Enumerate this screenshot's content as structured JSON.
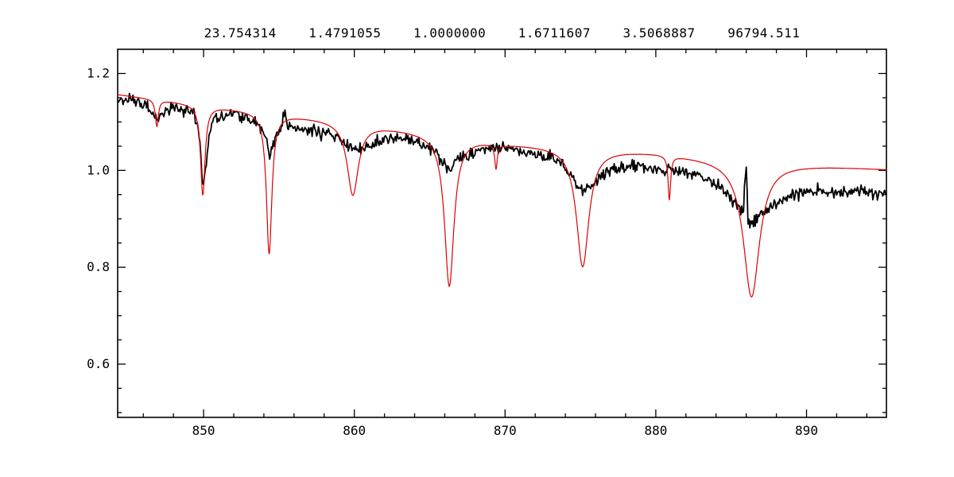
{
  "window": {
    "background": "#ffffff"
  },
  "chart_data": {
    "type": "line",
    "title": "23.754314    1.4791055    1.0000000    1.6711607    3.5068887    96794.511",
    "header_values": [
      "23.754314",
      "1.4791055",
      "1.0000000",
      "1.6711607",
      "3.5068887",
      "96794.511"
    ],
    "xlabel": "",
    "ylabel": "",
    "xlim": [
      844.3,
      895.3
    ],
    "ylim": [
      0.49,
      1.25
    ],
    "xticks": [
      850,
      860,
      870,
      880,
      890
    ],
    "xtick_labels": [
      "850",
      "860",
      "870",
      "880",
      "890"
    ],
    "xminor_step": 2,
    "yticks": [
      0.6,
      0.8,
      1.0,
      1.2
    ],
    "ytick_labels": [
      "0.6",
      "0.8",
      "1.0",
      "1.2"
    ],
    "yminor_step": 0.05,
    "grid": false,
    "legend": "none",
    "axis_color": "#000000",
    "series": [
      {
        "name": "observed-spectrum",
        "color": "#000000",
        "linewidth": 1.8,
        "sample_step": 0.06,
        "noise": 0.008,
        "seed": 987654,
        "anchors": [
          [
            844.3,
            1.15
          ],
          [
            845.0,
            1.148
          ],
          [
            845.6,
            1.142
          ],
          [
            846.2,
            1.132
          ],
          [
            846.8,
            1.115
          ],
          [
            847.0,
            1.103
          ],
          [
            847.3,
            1.121
          ],
          [
            848.0,
            1.128
          ],
          [
            848.8,
            1.124
          ],
          [
            849.4,
            1.117
          ],
          [
            849.75,
            1.06
          ],
          [
            849.95,
            0.962
          ],
          [
            850.15,
            1.01
          ],
          [
            850.5,
            1.098
          ],
          [
            851.2,
            1.115
          ],
          [
            852.0,
            1.117
          ],
          [
            852.8,
            1.108
          ],
          [
            853.6,
            1.095
          ],
          [
            854.1,
            1.068
          ],
          [
            854.4,
            1.032
          ],
          [
            854.7,
            1.068
          ],
          [
            855.1,
            1.084
          ],
          [
            855.42,
            1.127
          ],
          [
            855.6,
            1.088
          ],
          [
            856.3,
            1.086
          ],
          [
            857.2,
            1.081
          ],
          [
            858.2,
            1.076
          ],
          [
            859.0,
            1.064
          ],
          [
            859.6,
            1.05
          ],
          [
            860.0,
            1.042
          ],
          [
            860.5,
            1.048
          ],
          [
            861.2,
            1.057
          ],
          [
            862.0,
            1.064
          ],
          [
            862.8,
            1.067
          ],
          [
            863.6,
            1.064
          ],
          [
            864.4,
            1.058
          ],
          [
            865.0,
            1.048
          ],
          [
            865.6,
            1.03
          ],
          [
            866.0,
            1.01
          ],
          [
            866.3,
            1.002
          ],
          [
            866.7,
            1.016
          ],
          [
            867.3,
            1.03
          ],
          [
            868.2,
            1.038
          ],
          [
            869.0,
            1.043
          ],
          [
            869.8,
            1.046
          ],
          [
            870.6,
            1.042
          ],
          [
            871.4,
            1.036
          ],
          [
            872.2,
            1.031
          ],
          [
            873.0,
            1.027
          ],
          [
            873.8,
            1.012
          ],
          [
            874.4,
            0.99
          ],
          [
            874.9,
            0.966
          ],
          [
            875.2,
            0.957
          ],
          [
            875.6,
            0.966
          ],
          [
            876.2,
            0.985
          ],
          [
            877.0,
            1.0
          ],
          [
            877.8,
            1.008
          ],
          [
            878.6,
            1.01
          ],
          [
            879.4,
            1.006
          ],
          [
            880.2,
            1.001
          ],
          [
            881.0,
            0.998
          ],
          [
            881.8,
            0.995
          ],
          [
            882.6,
            0.989
          ],
          [
            883.4,
            0.981
          ],
          [
            884.2,
            0.967
          ],
          [
            884.9,
            0.947
          ],
          [
            885.5,
            0.927
          ],
          [
            885.82,
            0.912
          ],
          [
            885.92,
            1.003
          ],
          [
            886.02,
            0.998
          ],
          [
            886.12,
            0.9
          ],
          [
            886.45,
            0.892
          ],
          [
            887.0,
            0.906
          ],
          [
            887.7,
            0.925
          ],
          [
            888.4,
            0.94
          ],
          [
            889.2,
            0.951
          ],
          [
            890.0,
            0.958
          ],
          [
            890.8,
            0.96
          ],
          [
            891.6,
            0.953
          ],
          [
            892.4,
            0.958
          ],
          [
            893.2,
            0.952
          ],
          [
            894.0,
            0.956
          ],
          [
            894.6,
            0.949
          ],
          [
            895.3,
            0.953
          ]
        ]
      },
      {
        "name": "model-spectrum",
        "color": "#dd0000",
        "linewidth": 1.2,
        "sample_step": 0.02,
        "noise": 0,
        "seed": 1,
        "continuum": [
          [
            844.3,
            1.157
          ],
          [
            850,
            1.135
          ],
          [
            855,
            1.117
          ],
          [
            860,
            1.1
          ],
          [
            865,
            1.078
          ],
          [
            870,
            1.057
          ],
          [
            875,
            1.048
          ],
          [
            880,
            1.038
          ],
          [
            885,
            1.022
          ],
          [
            890,
            1.012
          ],
          [
            895.3,
            1.003
          ]
        ],
        "lines": [
          {
            "center": 846.9,
            "depth": 0.055,
            "width": 0.12
          },
          {
            "center": 849.95,
            "depth": 0.185,
            "width": 0.18
          },
          {
            "center": 854.35,
            "depth": 0.29,
            "width": 0.22
          },
          {
            "center": 859.9,
            "depth": 0.15,
            "width": 0.45
          },
          {
            "center": 866.3,
            "depth": 0.31,
            "width": 0.38
          },
          {
            "center": 869.4,
            "depth": 0.05,
            "width": 0.1
          },
          {
            "center": 875.15,
            "depth": 0.245,
            "width": 0.5
          },
          {
            "center": 880.9,
            "depth": 0.09,
            "width": 0.1
          },
          {
            "center": 886.35,
            "depth": 0.28,
            "width": 0.65
          }
        ]
      }
    ]
  }
}
